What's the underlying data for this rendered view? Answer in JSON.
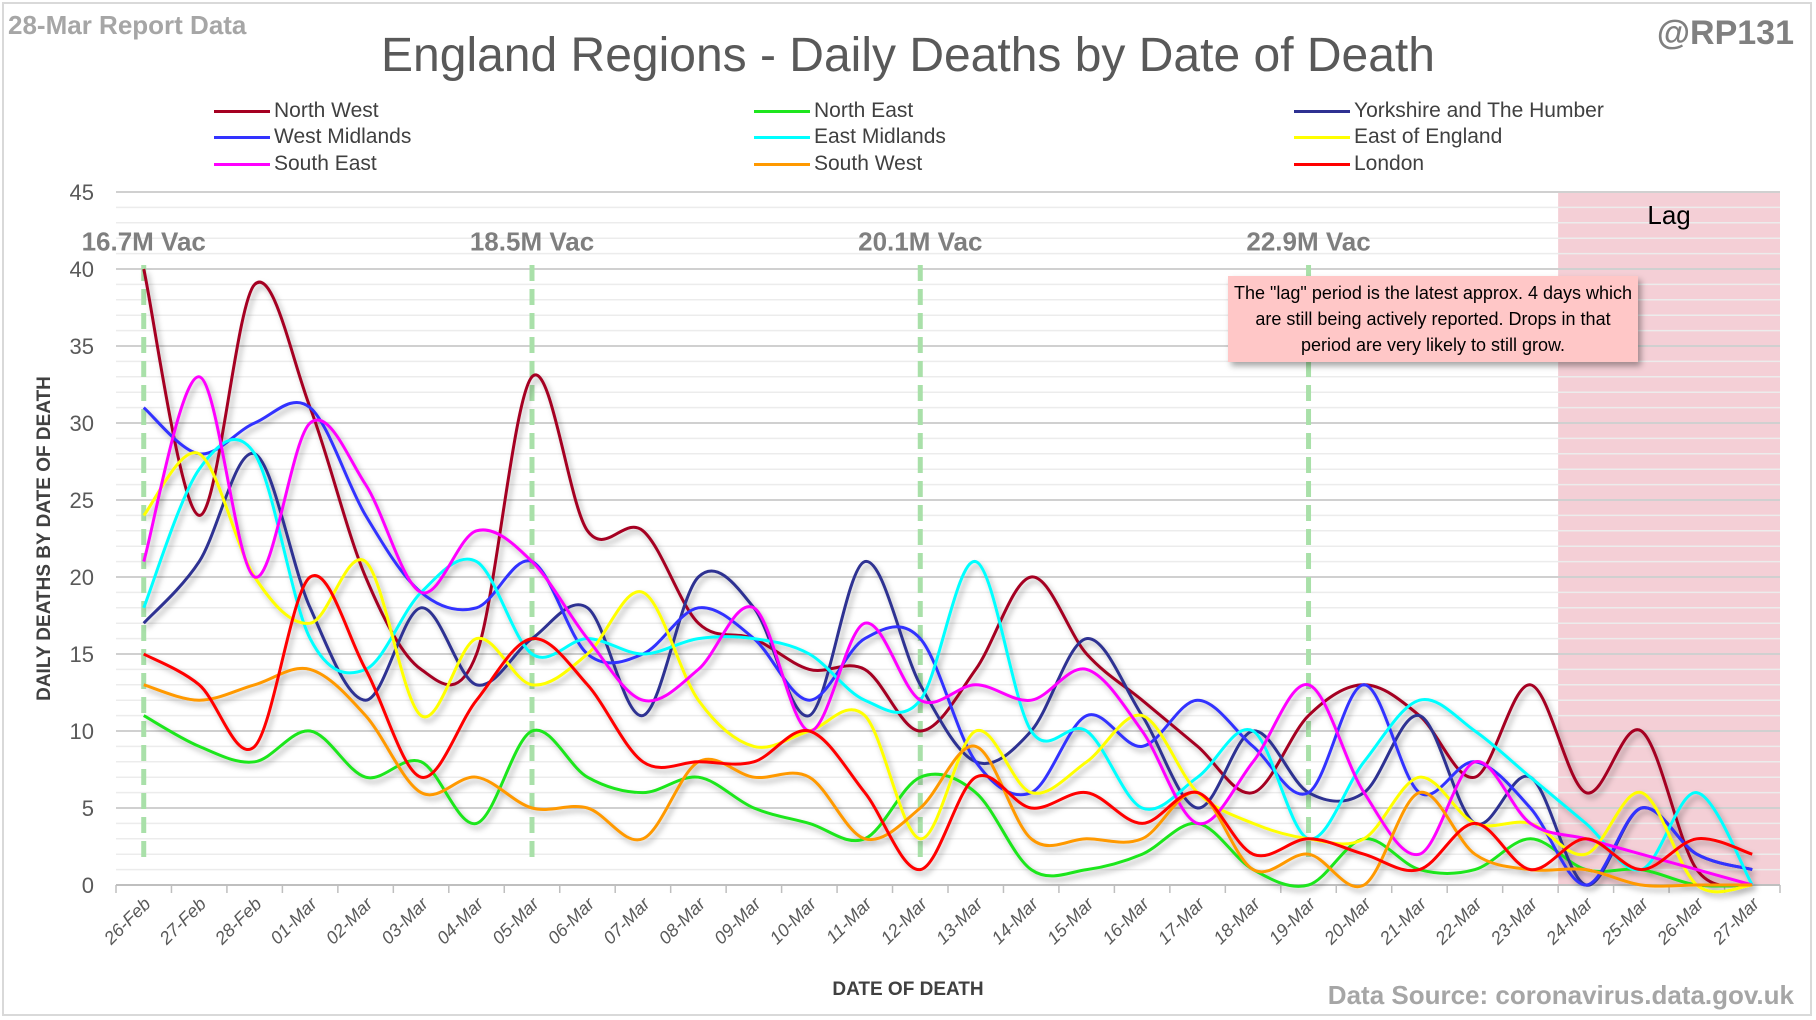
{
  "header": {
    "report_label": "28-Mar Report Data",
    "title": "England Regions - Daily Deaths by Date of Death",
    "handle": "@RP131",
    "source": "Data Source: coronavirus.data.gov.uk"
  },
  "annotations": {
    "lag_label": "Lag",
    "lag_note": "The \"lag\" period is the latest approx. 4 days which are still being actively reported. Drops in that period are very likely to still grow.",
    "vac_markers": [
      {
        "label": "16.7M Vac",
        "date": "26-Feb"
      },
      {
        "label": "18.5M Vac",
        "date": "05-Mar"
      },
      {
        "label": "20.1M Vac",
        "date": "12-Mar"
      },
      {
        "label": "22.9M Vac",
        "date": "19-Mar"
      }
    ],
    "lag_start": "24-Mar"
  },
  "chart_data": {
    "type": "line",
    "title": "England Regions - Daily Deaths by Date of Death",
    "xlabel": "DATE OF DEATH",
    "ylabel": "DAILY DEATHS BY DATE OF DEATH",
    "ylim": [
      0,
      45
    ],
    "yticks": [
      0,
      5,
      10,
      15,
      20,
      25,
      30,
      35,
      40,
      45
    ],
    "grid": true,
    "legend": "top",
    "x": [
      "26-Feb",
      "27-Feb",
      "28-Feb",
      "01-Mar",
      "02-Mar",
      "03-Mar",
      "04-Mar",
      "05-Mar",
      "06-Mar",
      "07-Mar",
      "08-Mar",
      "09-Mar",
      "10-Mar",
      "11-Mar",
      "12-Mar",
      "13-Mar",
      "14-Mar",
      "15-Mar",
      "16-Mar",
      "17-Mar",
      "18-Mar",
      "19-Mar",
      "20-Mar",
      "21-Mar",
      "22-Mar",
      "23-Mar",
      "24-Mar",
      "25-Mar",
      "26-Mar",
      "27-Mar"
    ],
    "series": [
      {
        "name": "North West",
        "color": "#a50021",
        "values": [
          40,
          24,
          39,
          31,
          20,
          14,
          15,
          33,
          23,
          23,
          17,
          16,
          14,
          14,
          10,
          14,
          20,
          15,
          12,
          9,
          6,
          11,
          13,
          11,
          7,
          13,
          6,
          10,
          1,
          0
        ]
      },
      {
        "name": "North East",
        "color": "#1ee61e",
        "values": [
          11,
          9,
          8,
          10,
          7,
          8,
          4,
          10,
          7,
          6,
          7,
          5,
          4,
          3,
          7,
          6,
          1,
          1,
          2,
          4,
          1,
          0,
          3,
          1,
          1,
          3,
          1,
          1,
          0,
          0
        ]
      },
      {
        "name": "Yorkshire and The Humber",
        "color": "#2e3192",
        "values": [
          17,
          21,
          28,
          18,
          12,
          18,
          13,
          16,
          18,
          11,
          20,
          18,
          11,
          21,
          13,
          8,
          10,
          16,
          11,
          5,
          10,
          6,
          6,
          11,
          4,
          7,
          0,
          5,
          2,
          1
        ]
      },
      {
        "name": "West Midlands",
        "color": "#3333ff",
        "values": [
          31,
          28,
          30,
          31,
          24,
          19,
          18,
          21,
          15,
          15,
          18,
          16,
          12,
          16,
          16,
          8,
          6,
          11,
          9,
          12,
          9,
          6,
          13,
          6,
          8,
          5,
          0,
          5,
          2,
          1
        ]
      },
      {
        "name": "East Midlands",
        "color": "#00ffff",
        "values": [
          18,
          27,
          28,
          16,
          14,
          19,
          21,
          15,
          16,
          15,
          16,
          16,
          15,
          12,
          12,
          21,
          10,
          10,
          5,
          7,
          10,
          3,
          8,
          12,
          10,
          7,
          4,
          1,
          6,
          0
        ]
      },
      {
        "name": "East of England",
        "color": "#ffff00",
        "values": [
          24,
          28,
          20,
          17,
          21,
          11,
          16,
          13,
          15,
          19,
          12,
          9,
          10,
          11,
          3,
          10,
          6,
          8,
          11,
          6,
          4,
          3,
          3,
          7,
          4,
          4,
          2,
          6,
          0,
          0
        ]
      },
      {
        "name": "South East",
        "color": "#ff00ff",
        "values": [
          21,
          33,
          20,
          30,
          26,
          19,
          23,
          21,
          16,
          12,
          14,
          18,
          10,
          17,
          12,
          13,
          12,
          14,
          10,
          4,
          8,
          13,
          6,
          2,
          8,
          4,
          3,
          2,
          1,
          0
        ]
      },
      {
        "name": "South West",
        "color": "#ff9900",
        "values": [
          13,
          12,
          13,
          14,
          11,
          6,
          7,
          5,
          5,
          3,
          8,
          7,
          7,
          3,
          5,
          9,
          3,
          3,
          3,
          6,
          1,
          2,
          0,
          6,
          2,
          1,
          1,
          0,
          0,
          0
        ]
      },
      {
        "name": "London",
        "color": "#ff0000",
        "values": [
          15,
          13,
          9,
          20,
          14,
          7,
          12,
          16,
          13,
          8,
          8,
          8,
          10,
          6,
          1,
          7,
          5,
          6,
          4,
          6,
          2,
          3,
          2,
          1,
          4,
          1,
          3,
          1,
          3,
          2
        ]
      }
    ]
  }
}
